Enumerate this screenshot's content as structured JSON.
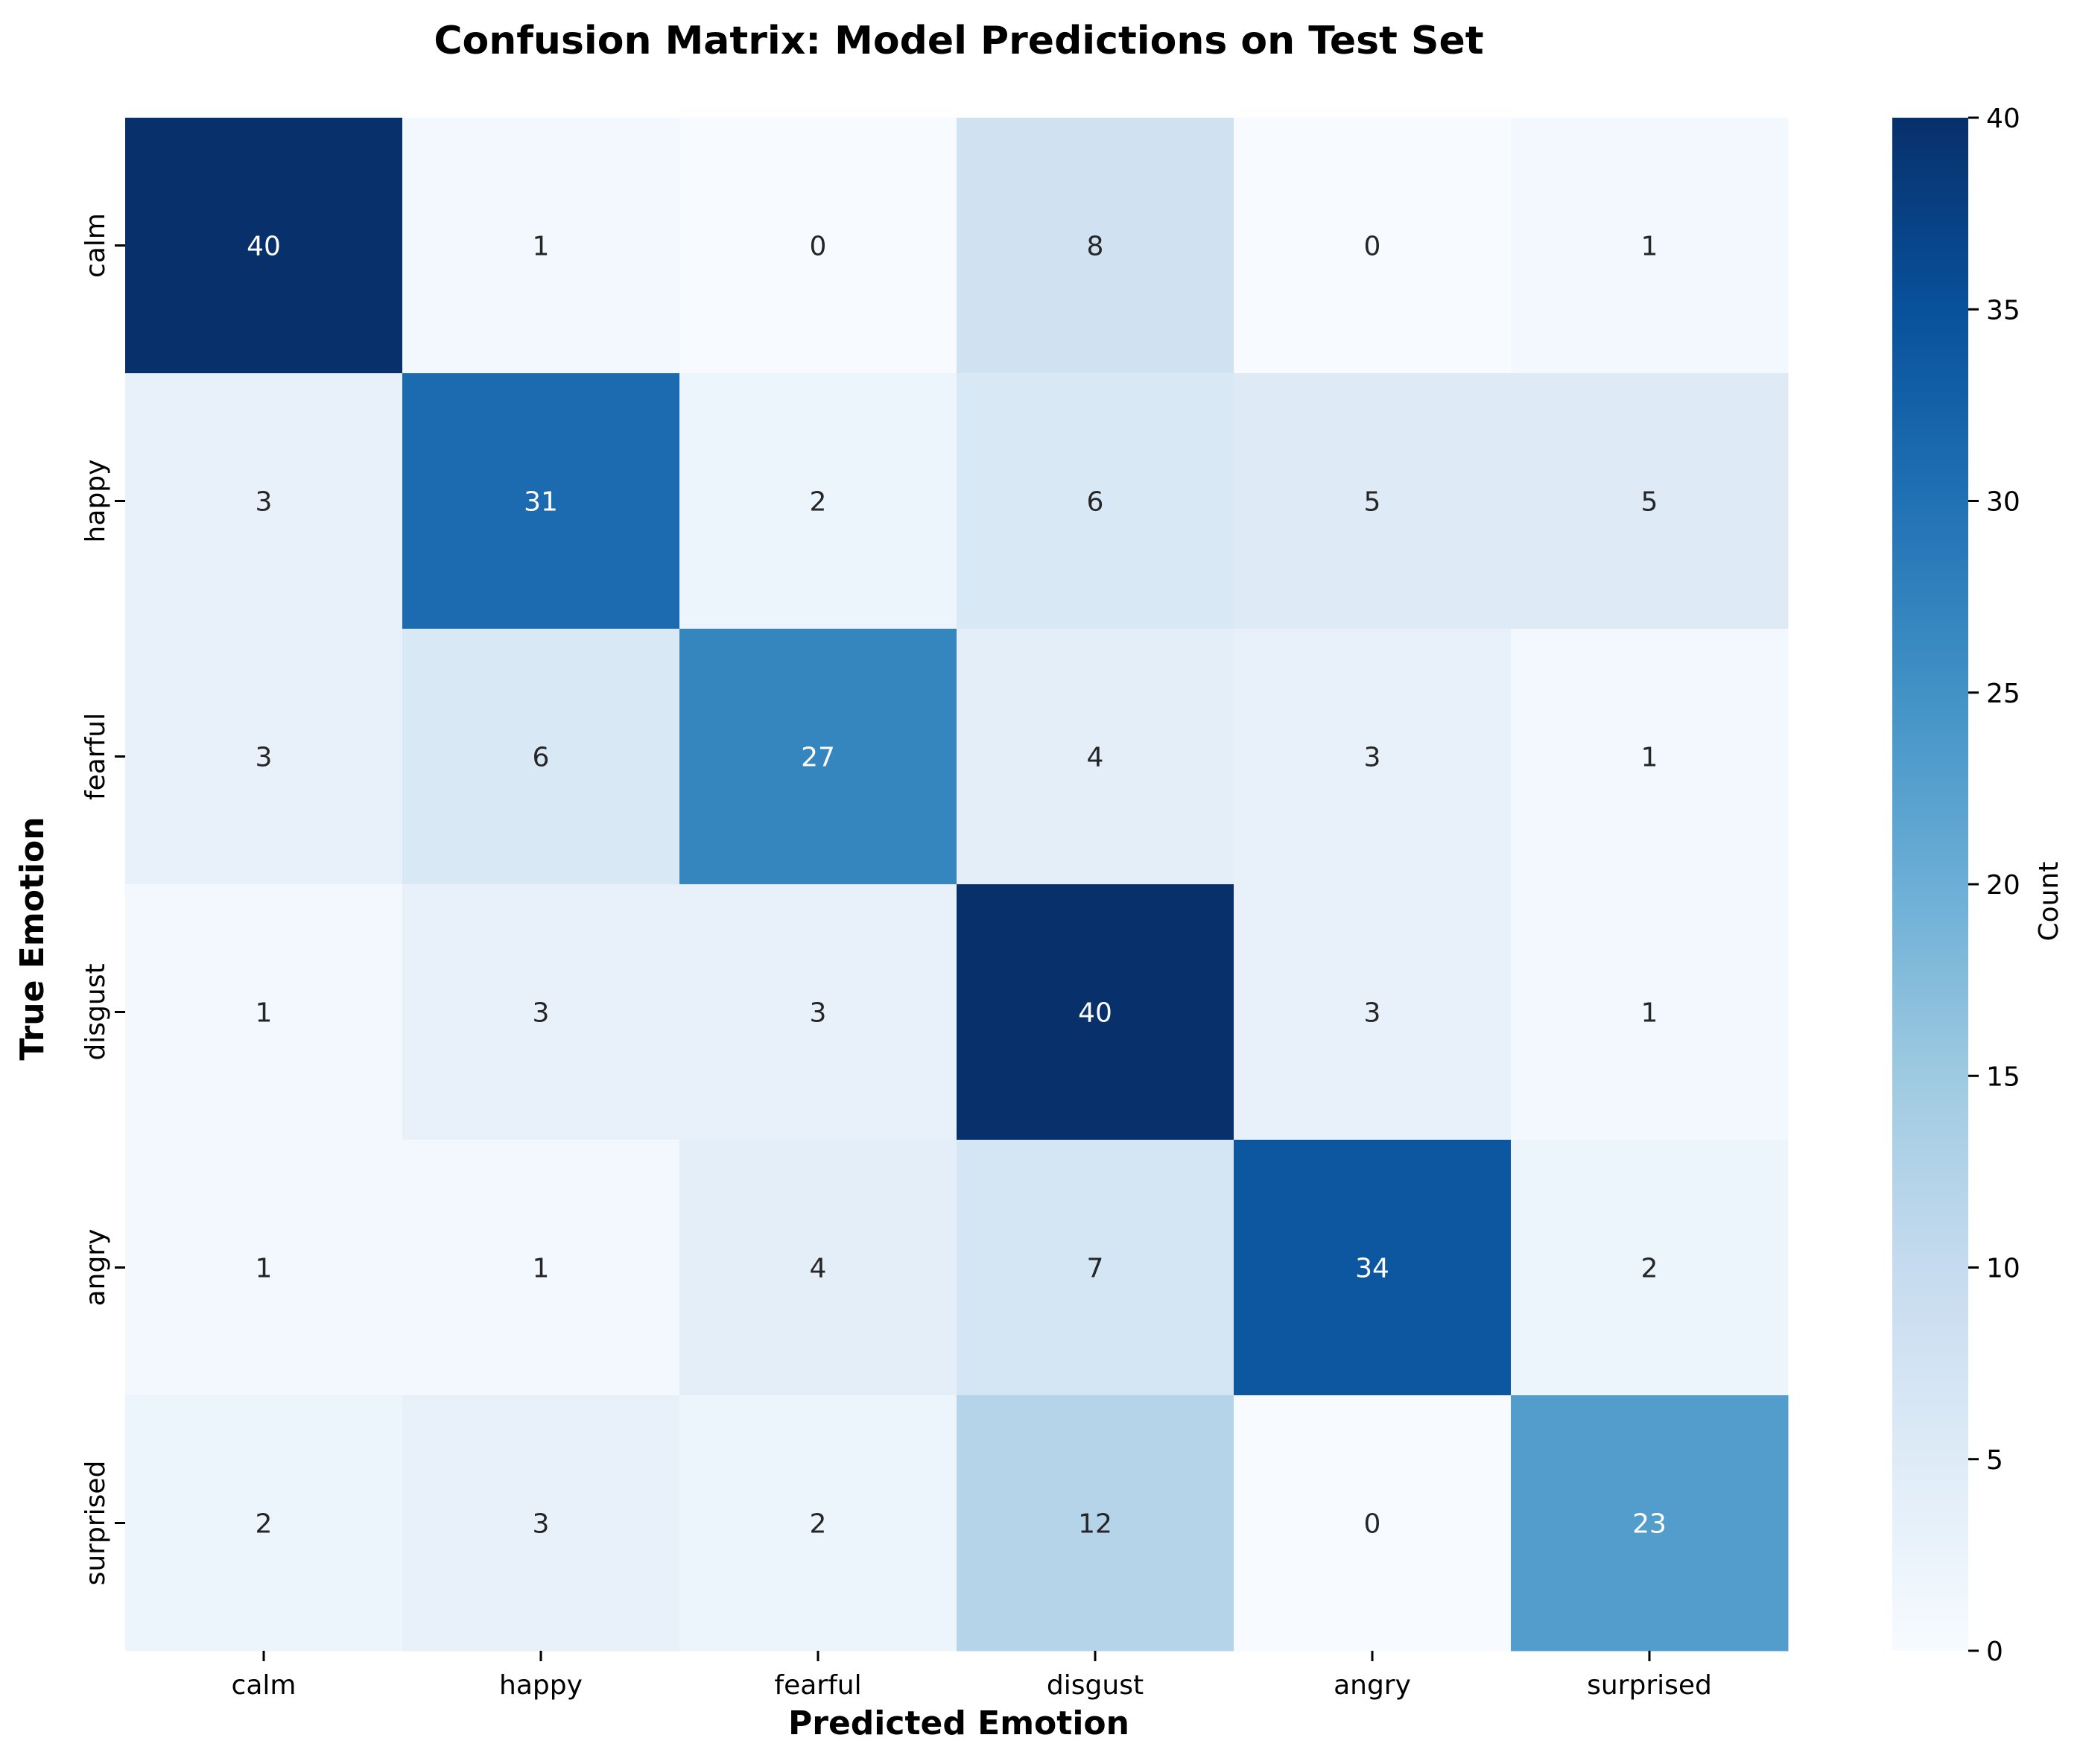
{
  "chart_data": {
    "type": "heatmap",
    "title": "Confusion Matrix: Model Predictions on Test Set",
    "xlabel": "Predicted Emotion",
    "ylabel": "True Emotion",
    "x_categories": [
      "calm",
      "happy",
      "fearful",
      "disgust",
      "angry",
      "surprised"
    ],
    "y_categories": [
      "calm",
      "happy",
      "fearful",
      "disgust",
      "angry",
      "surprised"
    ],
    "values": [
      [
        40,
        1,
        0,
        8,
        0,
        1
      ],
      [
        3,
        31,
        2,
        6,
        5,
        5
      ],
      [
        3,
        6,
        27,
        4,
        3,
        1
      ],
      [
        1,
        3,
        3,
        40,
        3,
        1
      ],
      [
        1,
        1,
        4,
        7,
        34,
        2
      ],
      [
        2,
        3,
        2,
        12,
        0,
        23
      ]
    ],
    "colormap": "Blues",
    "vmin": 0,
    "vmax": 40,
    "colorbar": {
      "label": "Count",
      "ticks": [
        0,
        5,
        10,
        15,
        20,
        25,
        30,
        35,
        40
      ]
    },
    "annotations": true,
    "grid": false
  }
}
